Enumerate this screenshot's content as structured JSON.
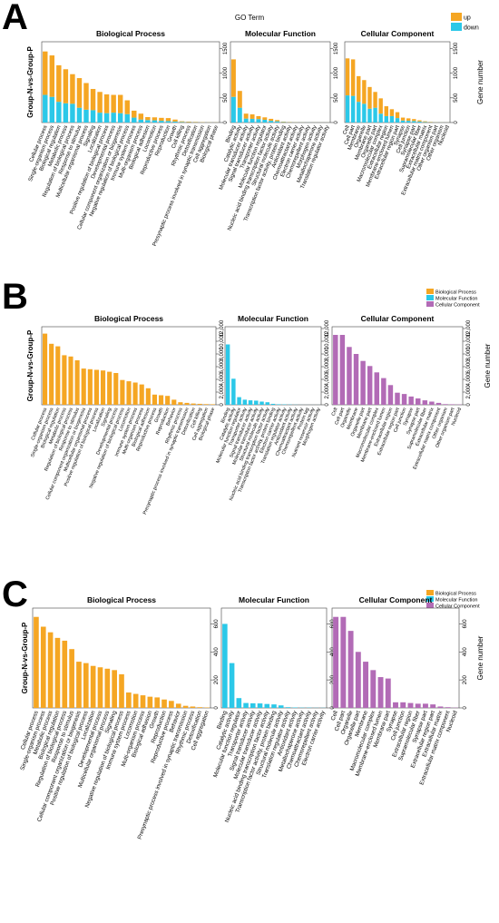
{
  "chart_data": [
    {
      "type": "bar",
      "panel_label": "A",
      "title": "GO Term",
      "ylabel": "Group-N-vs-Group-P",
      "y2label": "Gene number",
      "stacked": true,
      "legend": [
        {
          "name": "up",
          "color": "#F5A623"
        },
        {
          "name": "down",
          "color": "#2BC8E8"
        }
      ],
      "legend_position": "top-right",
      "grid": false,
      "facets": [
        {
          "title": "Biological Process",
          "ylim": [
            0,
            1600
          ],
          "ticks": [
            "0",
            "500",
            "1000",
            "1500"
          ],
          "categories": [
            "Cellular process",
            "Single-organism process",
            "Biological regulation",
            "Metabolic process",
            "Regulation of biological process",
            "Response to stimulus",
            "Multicellular organismal process",
            "Signaling",
            "Localization",
            "Positive regulation of biological process",
            "Developmental process",
            "Cellular component organization or biogenesis",
            "Negative regulation of biological process",
            "Immune system process",
            "Multi-organism process",
            "Biological adhesion",
            "Locomotion",
            "Reproductive process",
            "Reproduction",
            "Growth",
            "Cell killing",
            "Rhythmic process",
            "Detoxification",
            "Presynaptic process involved in synaptic transmission",
            "Cell aggregation",
            "Biological phase"
          ],
          "series": [
            {
              "name": "down",
              "values": [
                560,
                520,
                420,
                390,
                380,
                300,
                260,
                250,
                200,
                190,
                200,
                190,
                170,
                100,
                60,
                50,
                45,
                35,
                30,
                20,
                10,
                6,
                5,
                3,
                2,
                1
              ]
            },
            {
              "name": "up",
              "values": [
                880,
                840,
                740,
                690,
                600,
                600,
                540,
                430,
                420,
                380,
                360,
                370,
                280,
                140,
                120,
                60,
                60,
                60,
                60,
                40,
                15,
                12,
                8,
                5,
                3,
                2
              ]
            }
          ]
        },
        {
          "title": "Molecular Function",
          "ylim": [
            0,
            1600
          ],
          "ticks": [
            "0",
            "500",
            "1000",
            "1500"
          ],
          "categories": [
            "Binding",
            "Catalytic activity",
            "Molecular transducer activity",
            "Signal transducer activity",
            "Transporter activity",
            "Molecular function regulator",
            "Nucleic acid binding transcription factor activity",
            "Structural molecule activity",
            "Transcription factor activity, protein binding",
            "Antioxidant activity",
            "Chemoattractant activity",
            "Electron carrier activity",
            "Chemorepellent activity",
            "Morphogen activity",
            "Metallochaperone activity",
            "Translation regulator activity"
          ],
          "series": [
            {
              "name": "down",
              "values": [
                520,
                300,
                80,
                75,
                70,
                55,
                35,
                25,
                8,
                5,
                3,
                2,
                2,
                1,
                1,
                1
              ]
            },
            {
              "name": "up",
              "values": [
                760,
                340,
                100,
                90,
                60,
                50,
                40,
                25,
                10,
                6,
                3,
                2,
                1,
                1,
                1,
                1
              ]
            }
          ]
        },
        {
          "title": "Cellular Component",
          "ylim": [
            0,
            1600
          ],
          "ticks": [
            "0",
            "500",
            "1000",
            "1500"
          ],
          "categories": [
            "Cell",
            "Cell part",
            "Membrane",
            "Organelle",
            "Membrane part",
            "Organelle part",
            "Macromolecular complex",
            "Extracellular region",
            "Membrane-enclosed lumen",
            "Extracellular region part",
            "Synapse",
            "Cell junction",
            "Synapse part",
            "Supramolecular fiber",
            "Extracellular matrix",
            "Extracellular matrix component",
            "Other organism part",
            "Other organism",
            "Nucleoid"
          ],
          "series": [
            {
              "name": "down",
              "values": [
                550,
                540,
                420,
                380,
                280,
                300,
                180,
                130,
                130,
                90,
                40,
                35,
                30,
                20,
                10,
                5,
                3,
                2,
                1
              ]
            },
            {
              "name": "up",
              "values": [
                750,
                740,
                520,
                480,
                440,
                320,
                310,
                200,
                140,
                120,
                60,
                50,
                40,
                25,
                15,
                8,
                3,
                2,
                1
              ]
            }
          ]
        }
      ]
    },
    {
      "type": "bar",
      "panel_label": "B",
      "ylabel": "Group-N-vs-Group-P",
      "y2label": "Gene number",
      "legend": [
        {
          "name": "Biological Process",
          "color": "#F5A623"
        },
        {
          "name": "Molecular Function",
          "color": "#2BC8E8"
        },
        {
          "name": "Cellular Component",
          "color": "#B26BB6"
        }
      ],
      "legend_position": "top-right",
      "grid": false,
      "facets": [
        {
          "title": "Biological Process",
          "color": "#F5A623",
          "ylim": [
            0,
            12000
          ],
          "ticks": [
            "0",
            "2,000",
            "4,000",
            "6,000",
            "8,000",
            "10,000",
            "12,000"
          ],
          "categories": [
            "Cellular process",
            "Single-organism process",
            "Biological regulation",
            "Metabolic process",
            "Regulation of biological process",
            "Response to stimulus",
            "Cellular component organization or biogenesis",
            "Multicellular organismal process",
            "Positive regulation of biological process",
            "Localization",
            "Signaling",
            "Developmental process",
            "Negative regulation of biological process",
            "Locomotion",
            "Immune system process",
            "Multi-organism process",
            "Biological adhesion",
            "Reproductive process",
            "Growth",
            "Reproduction",
            "Behavior",
            "Rhythmic process",
            "Presynaptic process involved in synaptic transmission",
            "Detoxification",
            "Cell killing",
            "Cell aggregation",
            "Biological phase"
          ],
          "values": [
            11200,
            9600,
            9200,
            7800,
            7600,
            7000,
            5700,
            5600,
            5500,
            5400,
            5200,
            5000,
            3900,
            3700,
            3500,
            3200,
            2600,
            1600,
            1500,
            1400,
            800,
            400,
            300,
            200,
            150,
            100,
            80
          ]
        },
        {
          "title": "Molecular Function",
          "color": "#2BC8E8",
          "ylim": [
            0,
            12000
          ],
          "ticks": [
            "0",
            "2,000",
            "4,000",
            "6,000",
            "8,000",
            "10,000",
            "12,000"
          ],
          "categories": [
            "Binding",
            "Catalytic activity",
            "Molecular function regulator",
            "Transporter activity",
            "Signal transducer activity",
            "Molecular transducer activity",
            "Structural molecule activity",
            "Nucleic acid binding transcription factor activity",
            "Transcription factor activity, protein binding",
            "Electron carrier activity",
            "Translation regulator activity",
            "Antioxidant activity",
            "Chemoattractant activity",
            "Chemorepellent activity",
            "Protein tag",
            "Nutrient reservoir activity",
            "Morphogen activity"
          ],
          "values": [
            9500,
            4100,
            1200,
            800,
            700,
            650,
            500,
            400,
            150,
            80,
            60,
            40,
            20,
            10,
            5,
            5,
            5
          ]
        },
        {
          "title": "Cellular Component",
          "color": "#B26BB6",
          "ylim": [
            0,
            12000
          ],
          "ticks": [
            "0",
            "2,000",
            "4,000",
            "6,000",
            "8,000",
            "10,000",
            "12,000"
          ],
          "categories": [
            "Cell",
            "Cell part",
            "Organelle",
            "Membrane",
            "Organelle part",
            "Membrane part",
            "Macromolecular complex",
            "Membrane-enclosed lumen",
            "Extracellular region",
            "Extracellular region part",
            "Cell junction",
            "Synapse",
            "Synapse part",
            "Supramolecular fiber",
            "Extracellular matrix",
            "Extracellular matrix component",
            "Other organism",
            "Other organism part",
            "Nucleoid"
          ],
          "values": [
            11000,
            11000,
            9100,
            8000,
            6900,
            6100,
            5100,
            4200,
            3100,
            1900,
            1700,
            1300,
            1000,
            700,
            500,
            300,
            100,
            80,
            50
          ]
        }
      ]
    },
    {
      "type": "bar",
      "panel_label": "C",
      "ylabel": "Group-N-vs-Group-P",
      "y2label": "Gene number",
      "legend": [
        {
          "name": "Biological Process",
          "color": "#F5A623"
        },
        {
          "name": "Molecular Function",
          "color": "#2BC8E8"
        },
        {
          "name": "Cellular Component",
          "color": "#B26BB6"
        }
      ],
      "legend_position": "top-right",
      "grid": false,
      "facets": [
        {
          "title": "Biological Process",
          "color": "#F5A623",
          "ylim": [
            0,
            700
          ],
          "ticks": [
            "0",
            "200",
            "400",
            "600"
          ],
          "categories": [
            "Cellular process",
            "Single-organism process",
            "Metabolic process",
            "Biological regulation",
            "Regulation of biological process",
            "Response to stimulus",
            "Cellular component organization or biogenesis",
            "Positive regulation of biological process",
            "Localization",
            "Developmental process",
            "Multicellular organismal process",
            "Signaling",
            "Negative regulation of biological process",
            "Immune system process",
            "Locomotion",
            "Multi-organism process",
            "Biological adhesion",
            "Growth",
            "Reproduction",
            "Reproductive process",
            "Behavior",
            "Presynaptic process involved in synaptic transmission",
            "Rhythmic process",
            "Detoxification",
            "Cell aggregation"
          ],
          "values": [
            650,
            580,
            540,
            500,
            480,
            420,
            330,
            320,
            300,
            290,
            280,
            270,
            240,
            110,
            100,
            90,
            80,
            75,
            60,
            50,
            30,
            15,
            10,
            5,
            3
          ]
        },
        {
          "title": "Molecular Function",
          "color": "#2BC8E8",
          "ylim": [
            0,
            700
          ],
          "ticks": [
            "0",
            "200",
            "400",
            "600"
          ],
          "categories": [
            "Binding",
            "Catalytic activity",
            "Molecular function regulator",
            "Transporter activity",
            "Signal transducer activity",
            "Molecular transducer activity",
            "Nucleic acid binding transcription factor activity",
            "Transcription factor activity, protein binding",
            "Structural molecule activity",
            "Translation regulator activity",
            "Antioxidant activity",
            "Metallochaperone activity",
            "Chemoattractant activity",
            "Chemorepellent activity",
            "Electron carrier activity"
          ],
          "values": [
            600,
            320,
            70,
            35,
            33,
            32,
            28,
            25,
            18,
            5,
            3,
            2,
            2,
            1,
            1
          ]
        },
        {
          "title": "Cellular Component",
          "color": "#B26BB6",
          "ylim": [
            0,
            700
          ],
          "ticks": [
            "0",
            "200",
            "400",
            "600"
          ],
          "categories": [
            "Cell",
            "Cell part",
            "Organelle",
            "Organelle part",
            "Membrane",
            "Macromolecular complex",
            "Membrane-enclosed lumen",
            "Membrane part",
            "Synapse",
            "Cell junction",
            "Extracellular region",
            "Supramolecular fiber",
            "Synapse part",
            "Extracellular region part",
            "Extracellular matrix",
            "Extracellular matrix component",
            "Nucleoid"
          ],
          "values": [
            650,
            650,
            550,
            400,
            330,
            270,
            220,
            210,
            40,
            40,
            35,
            30,
            30,
            25,
            10,
            5,
            2
          ]
        }
      ]
    }
  ]
}
